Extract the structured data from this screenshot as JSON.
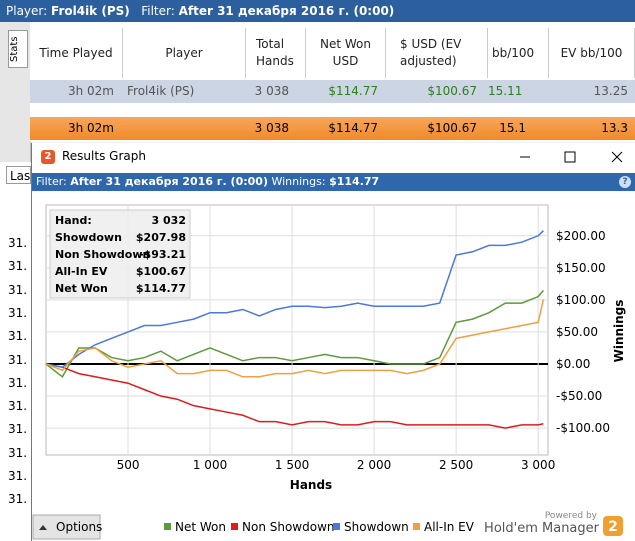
{
  "header": {
    "player_label": "Player:",
    "player": "Frol4ik (PS)",
    "filter_label": "Filter:",
    "filter": "After 31 декабря 2016 г. (0:00)"
  },
  "sidebar_tab": "Stats",
  "table": {
    "columns": {
      "time": "Time Played",
      "player": "Player",
      "hands": "Total Hands",
      "net_won": "Net Won USD",
      "ev_adjusted": "$ USD (EV adjusted)",
      "bb100": "bb/100",
      "ev_bb100": "EV bb/100"
    },
    "rows": [
      {
        "time": "3h 02m",
        "player": "Frol4ik (PS)",
        "hands": "3 038",
        "net_won": "$114.77",
        "ev_adjusted": "$100.67",
        "bb100": "15.11",
        "ev_bb100": "13.25"
      },
      {
        "time": "3h 02m",
        "hands": "3 038",
        "net_won": "$114.77",
        "ev_adjusted": "$100.67",
        "bb100": "15.1",
        "ev_bb100": "13.3"
      }
    ]
  },
  "dropdown": "Las",
  "left_labels": [
    "31.",
    "31.",
    "31.",
    "31.",
    "31.",
    "31.",
    "31.",
    "31.",
    "31.",
    "31.",
    "31.",
    "31."
  ],
  "window": {
    "logo": "2",
    "title": "Results Graph",
    "filter_label": "Filter:",
    "filter": "After 31 декабря 2016 г. (0:00)",
    "winnings_label": "Winnings:",
    "winnings": "$114.77",
    "help": "?",
    "options": "Options",
    "powered": "Powered by",
    "brand": "Hold'em Manager"
  },
  "stats_box": [
    {
      "label": "Hand:",
      "value": "3 032"
    },
    {
      "label": "Showdown",
      "value": "$207.98"
    },
    {
      "label": "Non Showdown",
      "value": "-$93.21"
    },
    {
      "label": "All-In EV",
      "value": "$100.67"
    },
    {
      "label": "Net Won",
      "value": "$114.77"
    }
  ],
  "chart_data": {
    "type": "line",
    "x_label": "Hands",
    "y_label": "Winnings",
    "x": [
      0,
      100,
      200,
      300,
      400,
      500,
      600,
      700,
      800,
      900,
      1000,
      1100,
      1200,
      1300,
      1400,
      1500,
      1600,
      1700,
      1800,
      1900,
      2000,
      2100,
      2200,
      2300,
      2400,
      2500,
      2600,
      2700,
      2800,
      2900,
      3000,
      3032
    ],
    "series": [
      {
        "name": "Net Won",
        "color": "#5c9a3a",
        "values": [
          0,
          -20,
          25,
          25,
          10,
          5,
          10,
          20,
          5,
          15,
          25,
          15,
          5,
          10,
          10,
          5,
          10,
          15,
          10,
          10,
          5,
          0,
          0,
          0,
          10,
          65,
          70,
          80,
          95,
          95,
          105,
          114.77
        ]
      },
      {
        "name": "Non Showdown",
        "color": "#e01b1b",
        "values": [
          0,
          -5,
          -15,
          -20,
          -25,
          -30,
          -40,
          -50,
          -55,
          -65,
          -70,
          -75,
          -80,
          -90,
          -90,
          -95,
          -90,
          -90,
          -95,
          -95,
          -90,
          -90,
          -95,
          -95,
          -95,
          -95,
          -95,
          -95,
          -100,
          -95,
          -95,
          -93.21
        ]
      },
      {
        "name": "Showdown",
        "color": "#4a77e0",
        "values": [
          0,
          -5,
          15,
          30,
          40,
          50,
          60,
          60,
          65,
          70,
          80,
          80,
          85,
          75,
          85,
          90,
          90,
          88,
          90,
          95,
          90,
          90,
          90,
          90,
          95,
          170,
          175,
          185,
          185,
          190,
          200,
          207.98
        ]
      },
      {
        "name": "All-In EV",
        "color": "#f0a040",
        "values": [
          0,
          -10,
          20,
          25,
          5,
          -5,
          0,
          5,
          -15,
          -15,
          -10,
          -10,
          -20,
          -20,
          -15,
          -15,
          -10,
          -15,
          -10,
          -10,
          -10,
          -10,
          -15,
          -10,
          0,
          40,
          45,
          50,
          55,
          60,
          65,
          100.67
        ]
      }
    ],
    "xlim": [
      0,
      3060
    ],
    "ylim": [
      -142,
      248
    ],
    "xticks": [
      500,
      {
        "value": 1000,
        "label": "1 000"
      },
      {
        "value": 1500,
        "label": "1 500"
      },
      {
        "value": 2000,
        "label": "2 000"
      },
      {
        "value": 2500,
        "label": "2 500"
      },
      {
        "value": 3000,
        "label": "3 000"
      }
    ],
    "yticks": [
      {
        "value": -100,
        "label": "-$100.00"
      },
      {
        "value": -50,
        "label": "-$50.00"
      },
      {
        "value": 0,
        "label": "$0.00"
      },
      {
        "value": 50,
        "label": "$50.00"
      },
      {
        "value": 100,
        "label": "$100.00"
      },
      {
        "value": 150,
        "label": "$150.00"
      },
      {
        "value": 200,
        "label": "$200.00"
      }
    ],
    "grid": true,
    "zero_line_color": "#000000"
  }
}
